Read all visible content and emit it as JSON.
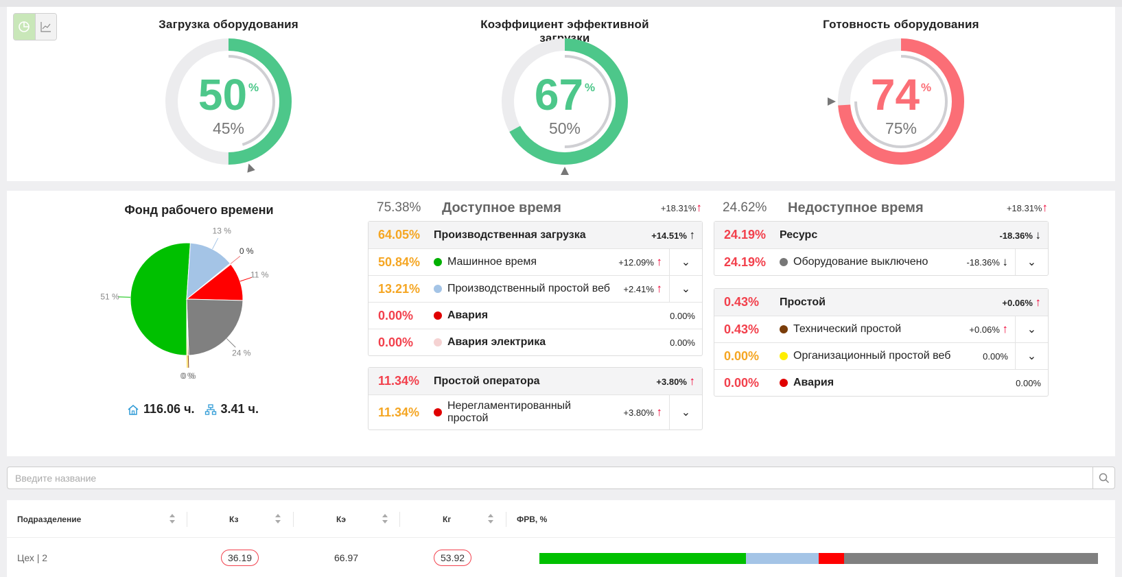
{
  "gauges": [
    {
      "title": "Загрузка оборудования",
      "value": "50",
      "pct": "%",
      "sub": "45%",
      "value_fraction": 0.5,
      "target_fraction": 0.45,
      "color": "#4dc78a"
    },
    {
      "title": "Коэффициент эффективной загрузки",
      "value": "67",
      "pct": "%",
      "sub": "50%",
      "value_fraction": 0.67,
      "target_fraction": 0.5,
      "color": "#4dc78a"
    },
    {
      "title": "Готовность оборудования",
      "value": "74",
      "pct": "%",
      "sub": "75%",
      "value_fraction": 0.74,
      "target_fraction": 0.75,
      "color": "#fb6e76"
    }
  ],
  "fund": {
    "title": "Фонд рабочего времени",
    "total_hours": "116.06 ч.",
    "struct_hours": "3.41 ч."
  },
  "chart_data": {
    "type": "pie",
    "slices": [
      {
        "label": "51 %",
        "value": 51,
        "color": "#00c000"
      },
      {
        "label": "13 %",
        "value": 13,
        "color": "#a4c4e6"
      },
      {
        "label": "0 %",
        "value": 0.3,
        "color": "#f0c8c8"
      },
      {
        "label": "11 %",
        "value": 11,
        "color": "#ff0000"
      },
      {
        "label": "24 %",
        "value": 24,
        "color": "#808080"
      },
      {
        "label": "0 %",
        "value": 0.3,
        "color": "#8b4513"
      },
      {
        "label": "0 %",
        "value": 0.3,
        "color": "#ffd000"
      }
    ]
  },
  "available": {
    "value": "75.38%",
    "title": "Доступное время",
    "delta": "+18.31%",
    "groups": [
      {
        "rows": [
          {
            "value": "64.05%",
            "label": "Производственная загрузка",
            "delta": "+14.51%",
            "header": true
          },
          {
            "value": "50.84%",
            "label": "Машинное время",
            "delta": "+12.09%",
            "dot": "#00b000"
          },
          {
            "value": "13.21%",
            "label": "Производственный простой веб",
            "delta": "+2.41%",
            "dot": "#a4c4e6"
          },
          {
            "value": "0.00%",
            "label": "Авария",
            "delta": "0.00%",
            "dot": "#e00000"
          },
          {
            "value": "0.00%",
            "label": "Авария электрика",
            "delta": "0.00%",
            "dot": "#f5d2d2"
          }
        ]
      },
      {
        "rows": [
          {
            "value": "11.34%",
            "label": "Простой оператора",
            "delta": "+3.80%",
            "header": true
          },
          {
            "value": "11.34%",
            "label": "Нерегламентированный простой",
            "delta": "+3.80%",
            "dot": "#e00000"
          }
        ]
      }
    ]
  },
  "unavailable": {
    "value": "24.62%",
    "title": "Недоступное время",
    "delta": "+18.31%",
    "groups": [
      {
        "rows": [
          {
            "value": "24.19%",
            "label": "Ресурс",
            "delta": "-18.36%",
            "header": true
          },
          {
            "value": "24.19%",
            "label": "Оборудование выключено",
            "delta": "-18.36%",
            "dot": "#777777"
          }
        ]
      },
      {
        "rows": [
          {
            "value": "0.43%",
            "label": "Простой",
            "delta": "+0.06%",
            "header": true
          },
          {
            "value": "0.43%",
            "label": "Технический простой",
            "delta": "+0.06%",
            "dot": "#7a3d0a"
          },
          {
            "value": "0.00%",
            "label": "Организационный простой веб",
            "delta": "0.00%",
            "dot": "#ffee00"
          },
          {
            "value": "0.00%",
            "label": "Авария",
            "delta": "0.00%",
            "dot": "#e00000"
          }
        ]
      }
    ]
  },
  "search": {
    "placeholder": "Введите название"
  },
  "table": {
    "headers": [
      "Подразделение",
      "Кз",
      "Кэ",
      "Кг",
      "ФРВ, %"
    ],
    "rows": [
      {
        "name": "Цех | 2",
        "kz": "36.19",
        "ke": "66.97",
        "kg": "53.92",
        "frv": [
          {
            "value": 37,
            "color": "#00c000"
          },
          {
            "value": 13,
            "color": "#a4c4e6"
          },
          {
            "value": 4.5,
            "color": "#ff0000"
          },
          {
            "value": 45.5,
            "color": "#808080"
          }
        ]
      }
    ]
  }
}
